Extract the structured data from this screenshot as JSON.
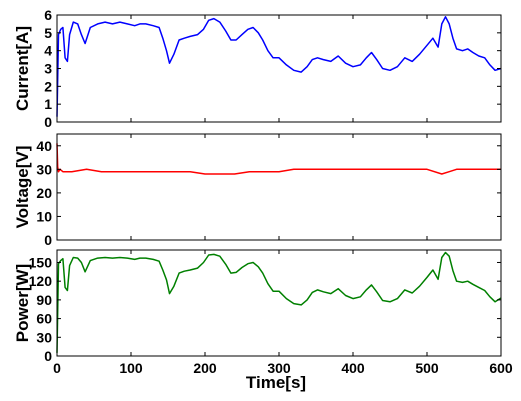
{
  "chart_data": [
    {
      "type": "line",
      "ylabel": "Current[A]",
      "xlabel": "",
      "xlim": [
        0,
        600
      ],
      "ylim": [
        0,
        6
      ],
      "yticks": [
        0,
        1,
        2,
        3,
        4,
        5,
        6
      ],
      "xticks": [
        0,
        100,
        200,
        300,
        400,
        500,
        600
      ],
      "show_xtick_labels": false,
      "grid": false,
      "color": "#0000ff",
      "series": [
        {
          "x": [
            0,
            2,
            5,
            8,
            11,
            14,
            17,
            22,
            28,
            33,
            38,
            45,
            55,
            65,
            75,
            85,
            95,
            105,
            112,
            120,
            130,
            138,
            143,
            148,
            152,
            158,
            165,
            172,
            180,
            190,
            198,
            205,
            212,
            220,
            228,
            235,
            242,
            250,
            258,
            265,
            272,
            278,
            285,
            292,
            300,
            310,
            320,
            330,
            338,
            345,
            352,
            360,
            370,
            380,
            390,
            400,
            410,
            418,
            425,
            432,
            440,
            450,
            460,
            470,
            480,
            490,
            500,
            508,
            515,
            520,
            525,
            530,
            535,
            540,
            548,
            555,
            562,
            570,
            578,
            585,
            592,
            600
          ],
          "y": [
            0.3,
            4.9,
            5.2,
            5.3,
            3.6,
            3.4,
            4.9,
            5.6,
            5.5,
            4.9,
            4.4,
            5.3,
            5.5,
            5.6,
            5.5,
            5.6,
            5.5,
            5.4,
            5.5,
            5.5,
            5.4,
            5.3,
            4.7,
            4.0,
            3.3,
            3.8,
            4.6,
            4.7,
            4.8,
            4.9,
            5.2,
            5.7,
            5.8,
            5.6,
            5.1,
            4.6,
            4.6,
            4.9,
            5.2,
            5.3,
            5.0,
            4.6,
            4.0,
            3.6,
            3.6,
            3.2,
            2.9,
            2.8,
            3.1,
            3.5,
            3.6,
            3.5,
            3.4,
            3.7,
            3.3,
            3.1,
            3.2,
            3.6,
            3.9,
            3.5,
            3.0,
            2.9,
            3.1,
            3.6,
            3.4,
            3.8,
            4.3,
            4.7,
            4.2,
            5.5,
            5.9,
            5.5,
            4.7,
            4.1,
            4.0,
            4.1,
            3.9,
            3.7,
            3.6,
            3.2,
            2.9,
            3.0
          ]
        }
      ]
    },
    {
      "type": "line",
      "ylabel": "Voltage[V]",
      "xlabel": "",
      "xlim": [
        0,
        600
      ],
      "ylim": [
        0,
        45
      ],
      "yticks": [
        0,
        10,
        20,
        30,
        40
      ],
      "xticks": [
        0,
        100,
        200,
        300,
        400,
        500,
        600
      ],
      "show_xtick_labels": false,
      "grid": false,
      "color": "#ff0000",
      "series": [
        {
          "x": [
            0,
            1,
            2,
            4,
            8,
            20,
            40,
            60,
            80,
            100,
            120,
            140,
            160,
            180,
            200,
            220,
            240,
            260,
            280,
            300,
            320,
            340,
            360,
            380,
            400,
            420,
            440,
            460,
            480,
            500,
            520,
            530,
            540,
            560,
            580,
            600
          ],
          "y": [
            41,
            31,
            29,
            30,
            29,
            29,
            30,
            29,
            29,
            29,
            29,
            29,
            29,
            29,
            28,
            28,
            28,
            29,
            29,
            29,
            30,
            30,
            30,
            30,
            30,
            30,
            30,
            30,
            30,
            30,
            28,
            29,
            30,
            30,
            30,
            30
          ]
        }
      ]
    },
    {
      "type": "line",
      "ylabel": "Power[W]",
      "xlabel": "Time[s]",
      "xlim": [
        0,
        600
      ],
      "ylim": [
        0,
        170
      ],
      "yticks": [
        0,
        30,
        60,
        90,
        120,
        150
      ],
      "xticks": [
        0,
        100,
        200,
        300,
        400,
        500,
        600
      ],
      "xtick_labels": [
        "0",
        "100",
        "200",
        "300",
        "400",
        "500",
        "600"
      ],
      "show_xtick_labels": true,
      "grid": false,
      "color": "#008000",
      "series": [
        {
          "x": [
            0,
            2,
            5,
            8,
            11,
            14,
            17,
            22,
            28,
            33,
            38,
            45,
            55,
            65,
            75,
            85,
            95,
            105,
            112,
            120,
            130,
            138,
            143,
            148,
            152,
            158,
            165,
            172,
            180,
            190,
            198,
            205,
            212,
            220,
            228,
            235,
            242,
            250,
            258,
            265,
            272,
            278,
            285,
            292,
            300,
            310,
            320,
            330,
            338,
            345,
            352,
            360,
            370,
            380,
            390,
            400,
            410,
            418,
            425,
            432,
            440,
            450,
            460,
            470,
            480,
            490,
            500,
            508,
            515,
            520,
            525,
            530,
            535,
            540,
            548,
            555,
            562,
            570,
            578,
            585,
            592,
            600
          ],
          "y": [
            5,
            148,
            153,
            156,
            110,
            105,
            145,
            158,
            157,
            150,
            135,
            153,
            157,
            158,
            157,
            158,
            157,
            155,
            157,
            157,
            155,
            152,
            138,
            122,
            100,
            112,
            133,
            136,
            138,
            141,
            150,
            162,
            163,
            160,
            147,
            133,
            134,
            142,
            148,
            150,
            143,
            133,
            116,
            104,
            104,
            92,
            84,
            82,
            90,
            102,
            106,
            103,
            100,
            108,
            97,
            92,
            95,
            106,
            114,
            103,
            89,
            87,
            92,
            106,
            101,
            112,
            126,
            138,
            123,
            158,
            166,
            160,
            137,
            120,
            118,
            120,
            115,
            110,
            105,
            95,
            87,
            93
          ]
        }
      ]
    }
  ]
}
